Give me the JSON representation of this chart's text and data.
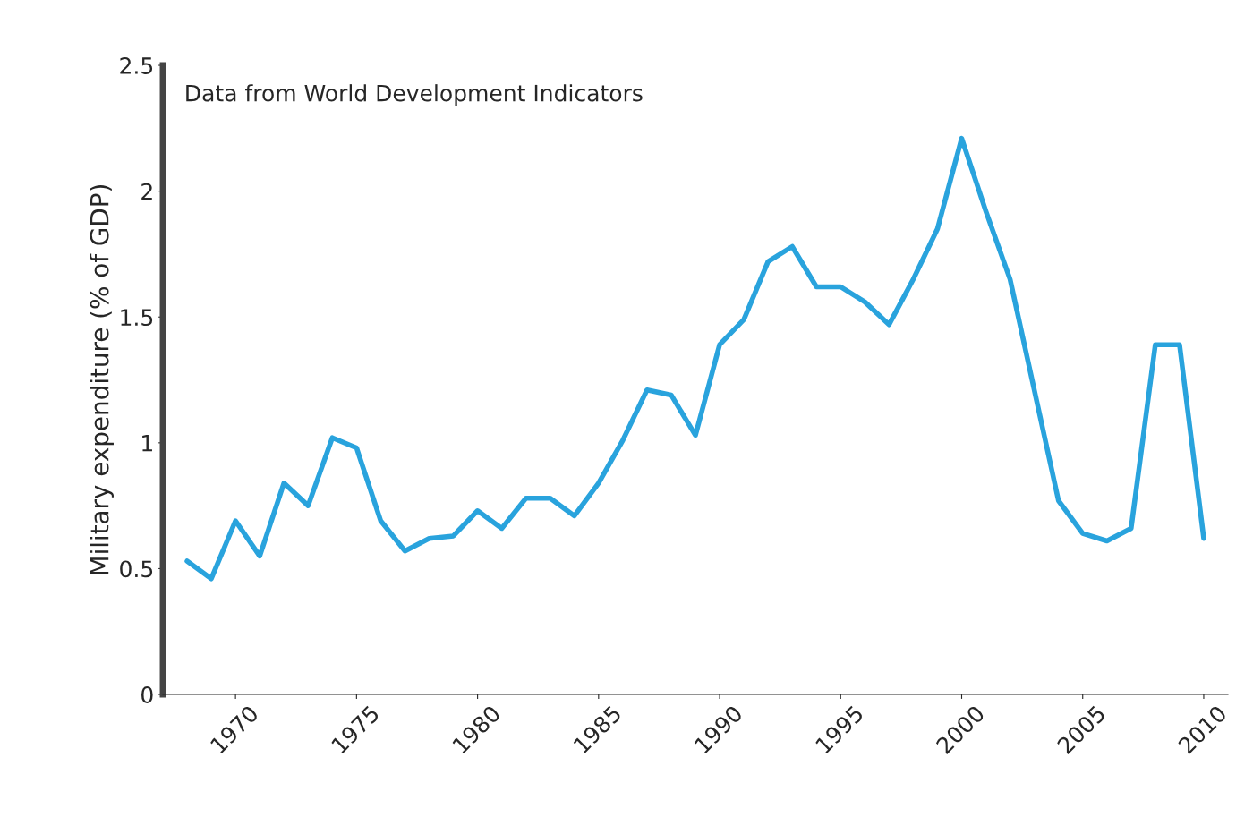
{
  "chart_data": {
    "type": "line",
    "title": "Data from World Development Indicators",
    "ylabel": "Military expenditure (% of GDP)",
    "x": [
      1968,
      1969,
      1970,
      1971,
      1972,
      1973,
      1974,
      1975,
      1976,
      1977,
      1978,
      1979,
      1980,
      1981,
      1982,
      1983,
      1984,
      1985,
      1986,
      1987,
      1988,
      1989,
      1990,
      1991,
      1992,
      1993,
      1994,
      1995,
      1996,
      1997,
      1998,
      1999,
      2000,
      2001,
      2002,
      2003,
      2004,
      2005,
      2006,
      2007,
      2008,
      2009,
      2010
    ],
    "series": [
      {
        "color": "#29a3dd",
        "values": [
          0.53,
          0.46,
          0.69,
          0.55,
          0.84,
          0.75,
          1.02,
          0.98,
          0.69,
          0.57,
          0.62,
          0.63,
          0.73,
          0.66,
          0.78,
          0.78,
          0.71,
          0.84,
          1.01,
          1.21,
          1.19,
          1.03,
          1.39,
          1.49,
          1.72,
          1.78,
          1.62,
          1.62,
          1.56,
          1.47,
          1.65,
          1.85,
          2.21,
          1.92,
          1.65,
          1.21,
          0.77,
          0.64,
          0.61,
          0.66,
          1.39,
          1.39,
          0.62
        ]
      }
    ],
    "xlim": [
      1967,
      2011
    ],
    "xticks": [
      1970,
      1975,
      1980,
      1985,
      1990,
      1995,
      2000,
      2005,
      2010
    ],
    "ylim": [
      0,
      2.5
    ],
    "yticks": [
      0,
      0.5,
      1,
      1.5,
      2,
      2.5
    ],
    "grid": false,
    "legend": false,
    "marker": "none",
    "line_style": "solid"
  }
}
